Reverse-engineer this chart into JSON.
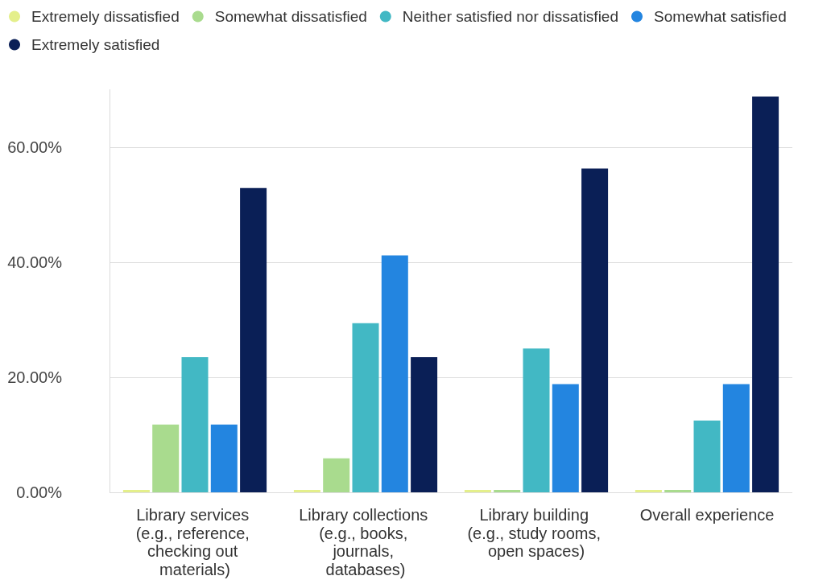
{
  "chart_data": {
    "type": "bar",
    "categories": [
      "Library services (e.g., reference, checking out materials)",
      "Library collections (e.g., books, journals, databases)",
      "Library building (e.g., study rooms, open spaces)",
      "Overall experience"
    ],
    "series": [
      {
        "name": "Extremely dissatisfied",
        "color": "#e4ef8b",
        "values": [
          0,
          0,
          0,
          0
        ]
      },
      {
        "name": "Somewhat dissatisfied",
        "color": "#a9db8e",
        "values": [
          11.8,
          5.9,
          0,
          0
        ]
      },
      {
        "name": "Neither satisfied nor dissatisfied",
        "color": "#42b8c4",
        "values": [
          23.5,
          29.4,
          25,
          12.5
        ]
      },
      {
        "name": "Somewhat satisfied",
        "color": "#2385e0",
        "values": [
          11.8,
          41.2,
          18.8,
          18.8
        ]
      },
      {
        "name": "Extremely satisfied",
        "color": "#0a1f56",
        "values": [
          52.9,
          23.5,
          56.3,
          68.8
        ]
      }
    ],
    "ylim": [
      0,
      70
    ],
    "yticks": [
      {
        "value": 0,
        "label": "0.00%"
      },
      {
        "value": 20,
        "label": "20.00%"
      },
      {
        "value": 40,
        "label": "40.00%"
      },
      {
        "value": 60,
        "label": "60.00%"
      }
    ],
    "grid": "y",
    "legend": "top left"
  }
}
